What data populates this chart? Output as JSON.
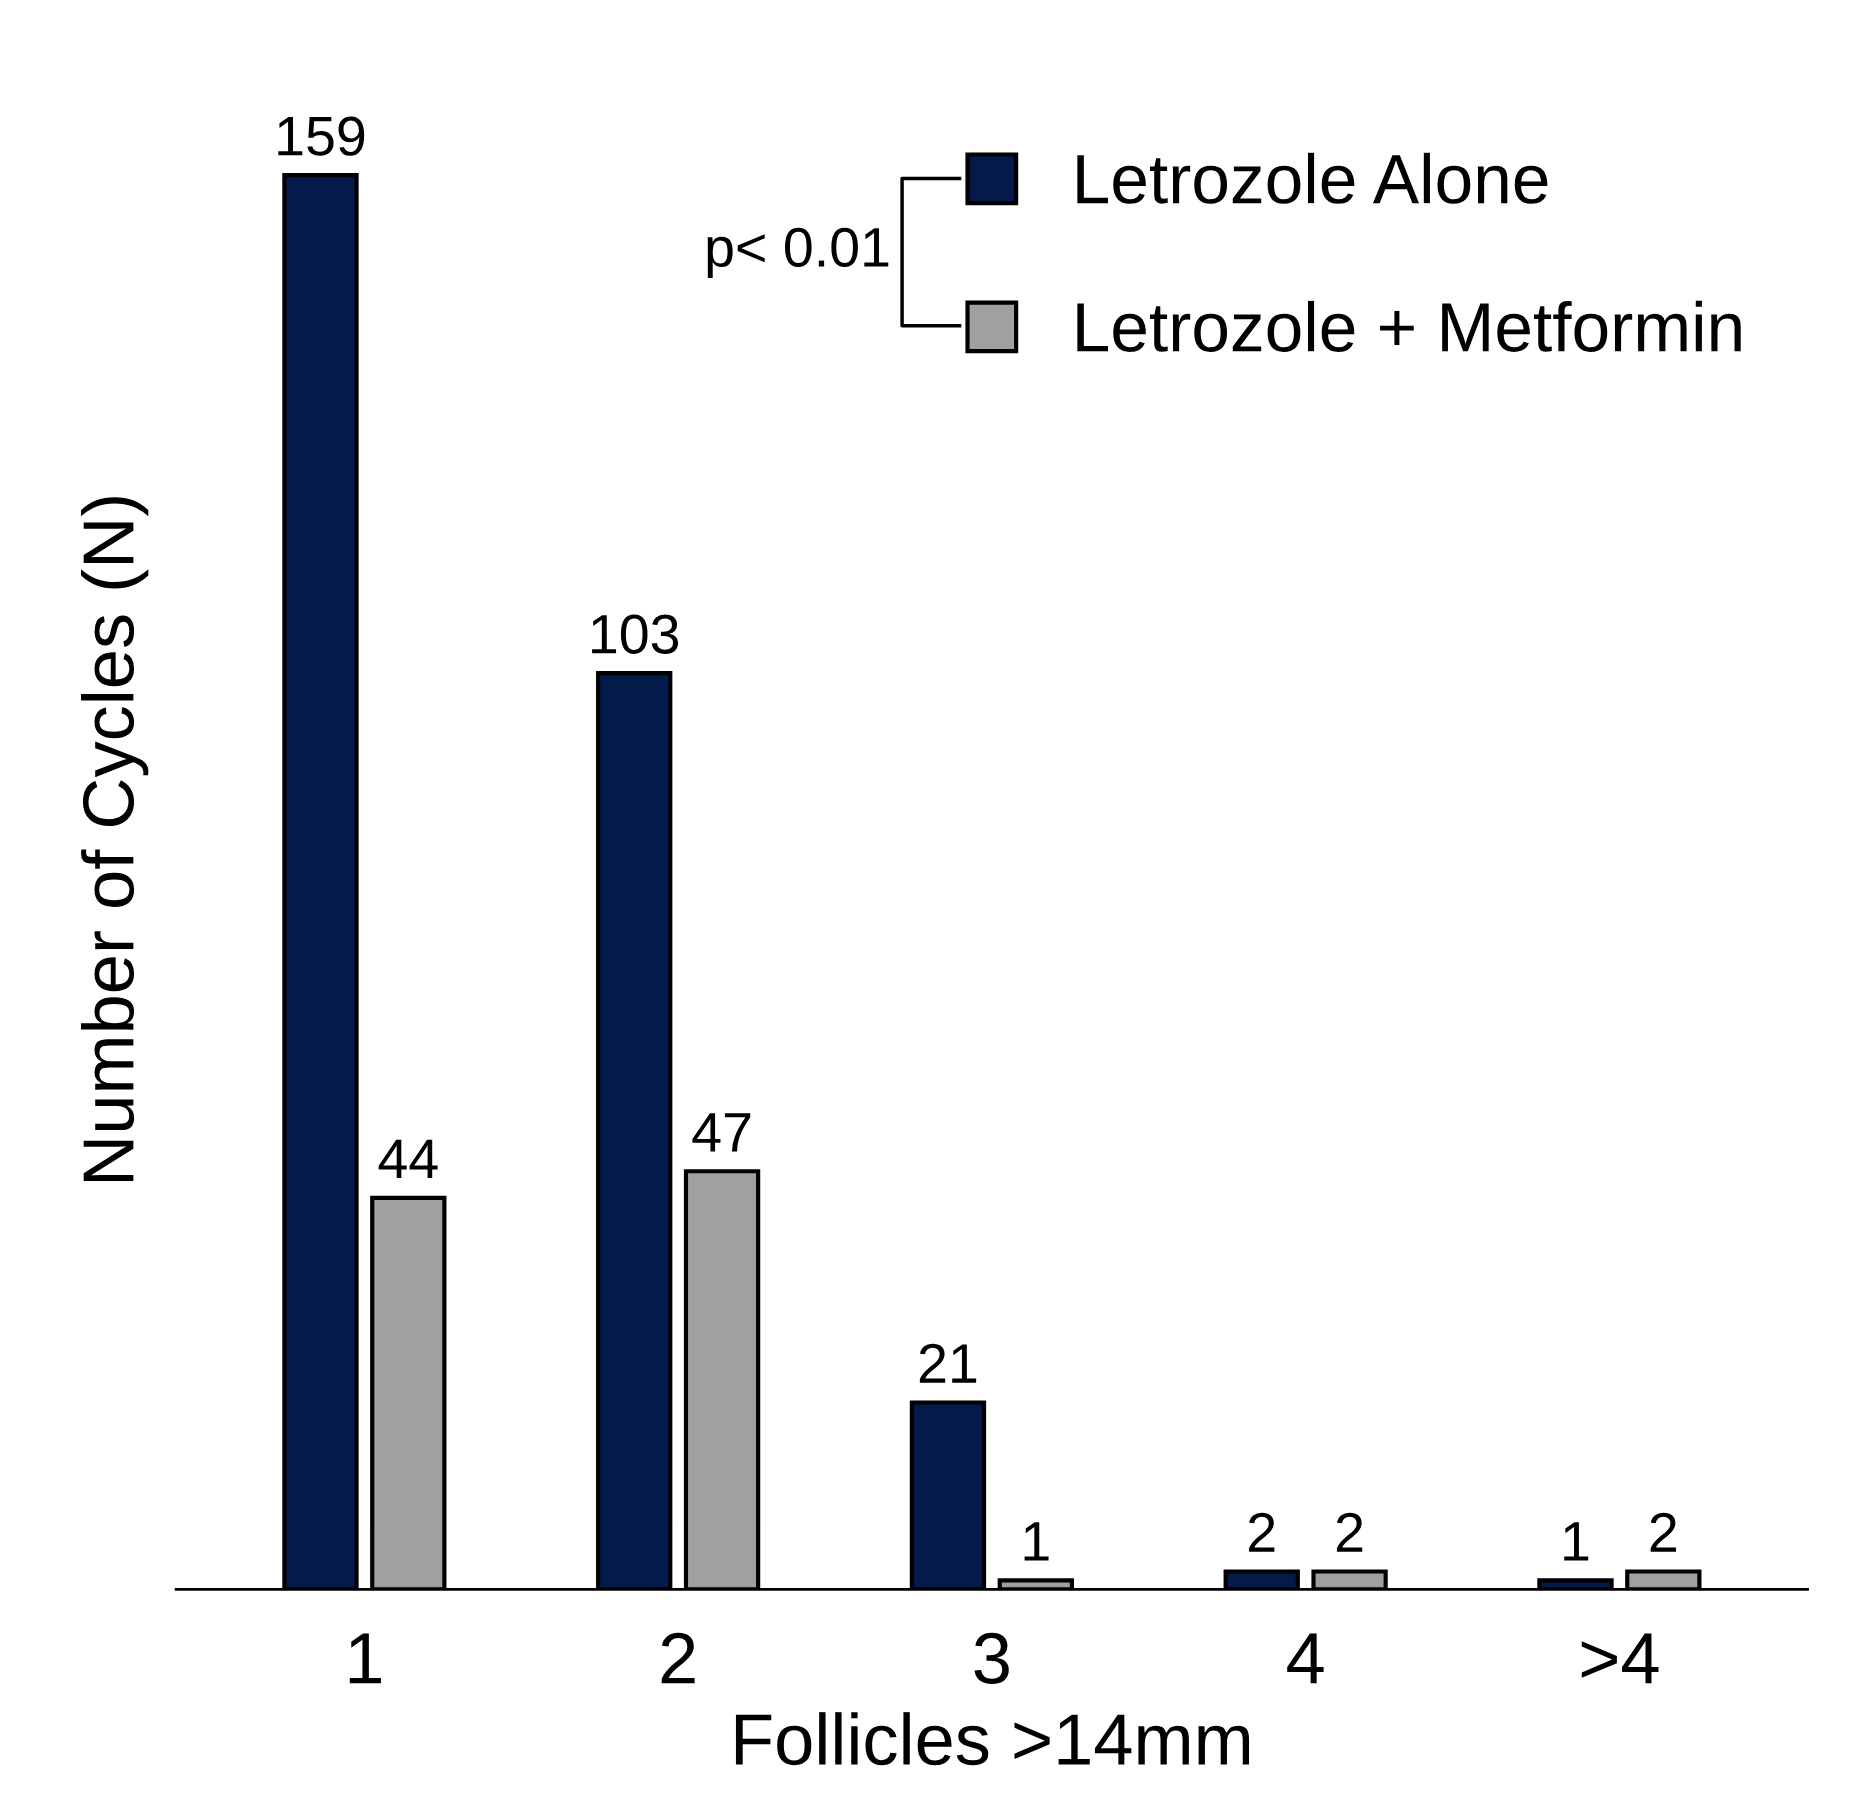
{
  "chart_data": {
    "type": "bar",
    "xlabel": "Follicles >14mm",
    "ylabel": "Number of Cycles (N)",
    "categories": [
      "1",
      "2",
      "3",
      "4",
      ">4"
    ],
    "series": [
      {
        "name": "Letrozole Alone",
        "color": "#041a4a",
        "values": [
          159,
          103,
          21,
          2,
          1
        ]
      },
      {
        "name": "Letrozole + Metformin",
        "color": "#a0a0a0",
        "values": [
          44,
          47,
          1,
          2,
          2
        ]
      }
    ],
    "data_labels": true,
    "legend": "top right",
    "tick_labels": "x",
    "grid": false,
    "annotations": [
      "p< 0.01"
    ]
  }
}
